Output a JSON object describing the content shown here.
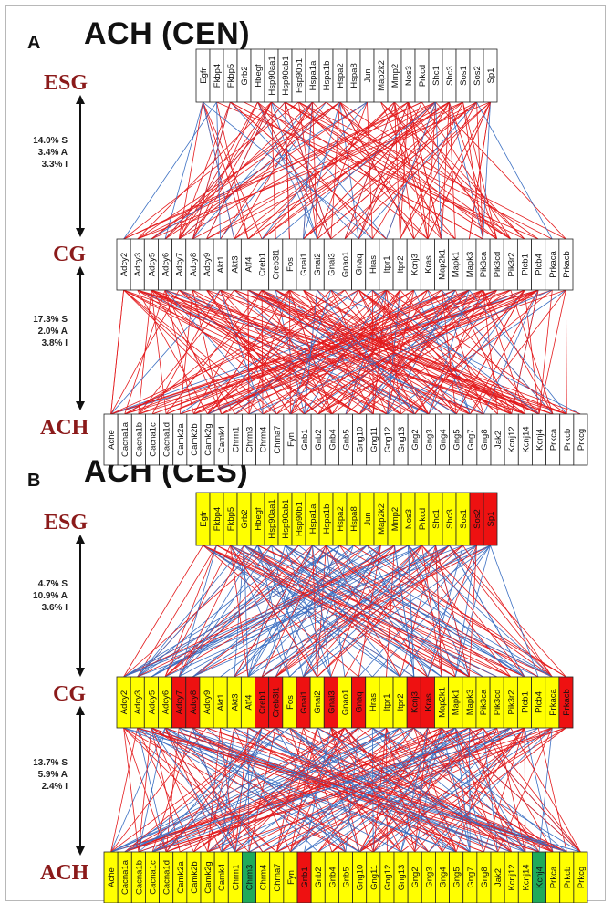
{
  "panels": [
    {
      "letter": "A",
      "title": "ACH (CEN)",
      "layer_labels": {
        "top": "ESG",
        "mid": "CG",
        "bottom": "ACH"
      },
      "stats_top": [
        "14.0% S",
        "3.4% A",
        "3.3% I"
      ],
      "stats_bottom": [
        "17.3% S",
        "2.0% A",
        "3.8% I"
      ],
      "esg": [
        {
          "name": "Egfr",
          "status": "none"
        },
        {
          "name": "Fkbp4",
          "status": "none"
        },
        {
          "name": "Fkbp5",
          "status": "none"
        },
        {
          "name": "Grb2",
          "status": "none"
        },
        {
          "name": "Hbegf",
          "status": "none"
        },
        {
          "name": "Hsp90aa1",
          "status": "none"
        },
        {
          "name": "Hsp90ab1",
          "status": "none"
        },
        {
          "name": "Hsp90b1",
          "status": "none"
        },
        {
          "name": "Hspa1a",
          "status": "none"
        },
        {
          "name": "Hspa1b",
          "status": "none"
        },
        {
          "name": "Hspa2",
          "status": "none"
        },
        {
          "name": "Hspa8",
          "status": "none"
        },
        {
          "name": "Jun",
          "status": "none"
        },
        {
          "name": "Map2k2",
          "status": "none"
        },
        {
          "name": "Mmp2",
          "status": "none"
        },
        {
          "name": "Nos3",
          "status": "none"
        },
        {
          "name": "Prkcd",
          "status": "none"
        },
        {
          "name": "Shc1",
          "status": "none"
        },
        {
          "name": "Shc3",
          "status": "none"
        },
        {
          "name": "Sos1",
          "status": "none"
        },
        {
          "name": "Sos2",
          "status": "none"
        },
        {
          "name": "Sp1",
          "status": "none"
        }
      ],
      "cg": [
        {
          "name": "Adcy2",
          "status": "none"
        },
        {
          "name": "Adcy3",
          "status": "none"
        },
        {
          "name": "Adcy5",
          "status": "none"
        },
        {
          "name": "Adcy6",
          "status": "none"
        },
        {
          "name": "Adcy7",
          "status": "none"
        },
        {
          "name": "Adcy8",
          "status": "none"
        },
        {
          "name": "Adcy9",
          "status": "none"
        },
        {
          "name": "Akt1",
          "status": "none"
        },
        {
          "name": "Akt3",
          "status": "none"
        },
        {
          "name": "Atf4",
          "status": "none"
        },
        {
          "name": "Creb1",
          "status": "none"
        },
        {
          "name": "Creb3l1",
          "status": "none"
        },
        {
          "name": "Fos",
          "status": "none"
        },
        {
          "name": "Gnai1",
          "status": "none"
        },
        {
          "name": "Gnai2",
          "status": "none"
        },
        {
          "name": "Gnai3",
          "status": "none"
        },
        {
          "name": "Gnao1",
          "status": "none"
        },
        {
          "name": "Gnaq",
          "status": "none"
        },
        {
          "name": "Hras",
          "status": "none"
        },
        {
          "name": "Itpr1",
          "status": "none"
        },
        {
          "name": "Itpr2",
          "status": "none"
        },
        {
          "name": "Kcnj3",
          "status": "none"
        },
        {
          "name": "Kras",
          "status": "none"
        },
        {
          "name": "Map2k1",
          "status": "none"
        },
        {
          "name": "Mapk1",
          "status": "none"
        },
        {
          "name": "Mapk3",
          "status": "none"
        },
        {
          "name": "Pik3ca",
          "status": "none"
        },
        {
          "name": "Pik3cd",
          "status": "none"
        },
        {
          "name": "Pik3r2",
          "status": "none"
        },
        {
          "name": "Plcb1",
          "status": "none"
        },
        {
          "name": "Plcb4",
          "status": "none"
        },
        {
          "name": "Prkaca",
          "status": "none"
        },
        {
          "name": "Prkacb",
          "status": "none"
        }
      ],
      "ach": [
        {
          "name": "Ache",
          "status": "none"
        },
        {
          "name": "Cacna1a",
          "status": "none"
        },
        {
          "name": "Cacna1b",
          "status": "none"
        },
        {
          "name": "Cacna1c",
          "status": "none"
        },
        {
          "name": "Cacna1d",
          "status": "none"
        },
        {
          "name": "Camk2a",
          "status": "none"
        },
        {
          "name": "Camk2b",
          "status": "none"
        },
        {
          "name": "Camk2g",
          "status": "none"
        },
        {
          "name": "Camk4",
          "status": "none"
        },
        {
          "name": "Chrm1",
          "status": "none"
        },
        {
          "name": "Chrm3",
          "status": "none"
        },
        {
          "name": "Chrm4",
          "status": "none"
        },
        {
          "name": "Chrna7",
          "status": "none"
        },
        {
          "name": "Fyn",
          "status": "none"
        },
        {
          "name": "Gnb1",
          "status": "none"
        },
        {
          "name": "Gnb2",
          "status": "none"
        },
        {
          "name": "Gnb4",
          "status": "none"
        },
        {
          "name": "Gnb5",
          "status": "none"
        },
        {
          "name": "Gng10",
          "status": "none"
        },
        {
          "name": "Gng11",
          "status": "none"
        },
        {
          "name": "Gng12",
          "status": "none"
        },
        {
          "name": "Gng13",
          "status": "none"
        },
        {
          "name": "Gng2",
          "status": "none"
        },
        {
          "name": "Gng3",
          "status": "none"
        },
        {
          "name": "Gng4",
          "status": "none"
        },
        {
          "name": "Gng5",
          "status": "none"
        },
        {
          "name": "Gng7",
          "status": "none"
        },
        {
          "name": "Gng8",
          "status": "none"
        },
        {
          "name": "Jak2",
          "status": "none"
        },
        {
          "name": "Kcnj12",
          "status": "none"
        },
        {
          "name": "Kcnj14",
          "status": "none"
        },
        {
          "name": "Kcnj4",
          "status": "none"
        },
        {
          "name": "Prkca",
          "status": "none"
        },
        {
          "name": "Prkcb",
          "status": "none"
        },
        {
          "name": "Prkcg",
          "status": "none"
        }
      ]
    },
    {
      "letter": "B",
      "title": "ACH (CES)",
      "layer_labels": {
        "top": "ESG",
        "mid": "CG",
        "bottom": "ACH"
      },
      "stats_top": [
        "4.7% S",
        "10.9% A",
        "3.6% I"
      ],
      "stats_bottom": [
        "13.7% S",
        "5.9% A",
        "2.4% I"
      ],
      "esg": [
        {
          "name": "Egfr",
          "status": "up"
        },
        {
          "name": "Fkbp4",
          "status": "up"
        },
        {
          "name": "Fkbp5",
          "status": "up"
        },
        {
          "name": "Grb2",
          "status": "up"
        },
        {
          "name": "Hbegf",
          "status": "up"
        },
        {
          "name": "Hsp90aa1",
          "status": "up"
        },
        {
          "name": "Hsp90ab1",
          "status": "up"
        },
        {
          "name": "Hsp90b1",
          "status": "up"
        },
        {
          "name": "Hspa1a",
          "status": "up"
        },
        {
          "name": "Hspa1b",
          "status": "up"
        },
        {
          "name": "Hspa2",
          "status": "up"
        },
        {
          "name": "Hspa8",
          "status": "up"
        },
        {
          "name": "Jun",
          "status": "up"
        },
        {
          "name": "Map2k2",
          "status": "up"
        },
        {
          "name": "Mmp2",
          "status": "up"
        },
        {
          "name": "Nos3",
          "status": "up"
        },
        {
          "name": "Prkcd",
          "status": "up"
        },
        {
          "name": "Shc1",
          "status": "up"
        },
        {
          "name": "Shc3",
          "status": "up"
        },
        {
          "name": "Sos1",
          "status": "up"
        },
        {
          "name": "Sos2",
          "status": "sig"
        },
        {
          "name": "Sp1",
          "status": "sig"
        }
      ],
      "cg": [
        {
          "name": "Adcy2",
          "status": "up"
        },
        {
          "name": "Adcy3",
          "status": "up"
        },
        {
          "name": "Adcy5",
          "status": "up"
        },
        {
          "name": "Adcy6",
          "status": "up"
        },
        {
          "name": "Adcy7",
          "status": "sig"
        },
        {
          "name": "Adcy8",
          "status": "sig"
        },
        {
          "name": "Adcy9",
          "status": "up"
        },
        {
          "name": "Akt1",
          "status": "up"
        },
        {
          "name": "Akt3",
          "status": "up"
        },
        {
          "name": "Atf4",
          "status": "up"
        },
        {
          "name": "Creb1",
          "status": "sig"
        },
        {
          "name": "Creb3l1",
          "status": "sig"
        },
        {
          "name": "Fos",
          "status": "up"
        },
        {
          "name": "Gnai1",
          "status": "sig"
        },
        {
          "name": "Gnai2",
          "status": "up"
        },
        {
          "name": "Gnai3",
          "status": "sig"
        },
        {
          "name": "Gnao1",
          "status": "up"
        },
        {
          "name": "Gnaq",
          "status": "sig"
        },
        {
          "name": "Hras",
          "status": "up"
        },
        {
          "name": "Itpr1",
          "status": "up"
        },
        {
          "name": "Itpr2",
          "status": "up"
        },
        {
          "name": "Kcnj3",
          "status": "sig"
        },
        {
          "name": "Kras",
          "status": "sig"
        },
        {
          "name": "Map2k1",
          "status": "up"
        },
        {
          "name": "Mapk1",
          "status": "up"
        },
        {
          "name": "Mapk3",
          "status": "up"
        },
        {
          "name": "Pik3ca",
          "status": "up"
        },
        {
          "name": "Pik3cd",
          "status": "up"
        },
        {
          "name": "Pik3r2",
          "status": "up"
        },
        {
          "name": "Plcb1",
          "status": "up"
        },
        {
          "name": "Plcb4",
          "status": "up"
        },
        {
          "name": "Prkaca",
          "status": "up"
        },
        {
          "name": "Prkacb",
          "status": "sig"
        }
      ],
      "ach": [
        {
          "name": "Ache",
          "status": "up"
        },
        {
          "name": "Cacna1a",
          "status": "up"
        },
        {
          "name": "Cacna1b",
          "status": "up"
        },
        {
          "name": "Cacna1c",
          "status": "up"
        },
        {
          "name": "Cacna1d",
          "status": "up"
        },
        {
          "name": "Camk2a",
          "status": "up"
        },
        {
          "name": "Camk2b",
          "status": "up"
        },
        {
          "name": "Camk2g",
          "status": "up"
        },
        {
          "name": "Camk4",
          "status": "up"
        },
        {
          "name": "Chrm1",
          "status": "up"
        },
        {
          "name": "Chrm3",
          "status": "down"
        },
        {
          "name": "Chrm4",
          "status": "up"
        },
        {
          "name": "Chrna7",
          "status": "up"
        },
        {
          "name": "Fyn",
          "status": "up"
        },
        {
          "name": "Gnb1",
          "status": "sig"
        },
        {
          "name": "Gnb2",
          "status": "up"
        },
        {
          "name": "Gnb4",
          "status": "up"
        },
        {
          "name": "Gnb5",
          "status": "up"
        },
        {
          "name": "Gng10",
          "status": "up"
        },
        {
          "name": "Gng11",
          "status": "up"
        },
        {
          "name": "Gng12",
          "status": "up"
        },
        {
          "name": "Gng13",
          "status": "up"
        },
        {
          "name": "Gng2",
          "status": "up"
        },
        {
          "name": "Gng3",
          "status": "up"
        },
        {
          "name": "Gng4",
          "status": "up"
        },
        {
          "name": "Gng5",
          "status": "up"
        },
        {
          "name": "Gng7",
          "status": "up"
        },
        {
          "name": "Gng8",
          "status": "up"
        },
        {
          "name": "Jak2",
          "status": "up"
        },
        {
          "name": "Kcnj12",
          "status": "up"
        },
        {
          "name": "Kcnj14",
          "status": "up"
        },
        {
          "name": "Kcnj4",
          "status": "down"
        },
        {
          "name": "Prkca",
          "status": "up"
        },
        {
          "name": "Prkcb",
          "status": "up"
        },
        {
          "name": "Prkcg",
          "status": "up"
        }
      ]
    }
  ],
  "colors": {
    "node_none": "#ffffff",
    "node_up": "#ffff00",
    "node_sig": "#ee1111",
    "node_down": "#1faa5a",
    "edge_synergistic": "#e31a1c",
    "edge_antagonistic": "#3b6fc2",
    "layer_label": "#8b1a1a"
  }
}
